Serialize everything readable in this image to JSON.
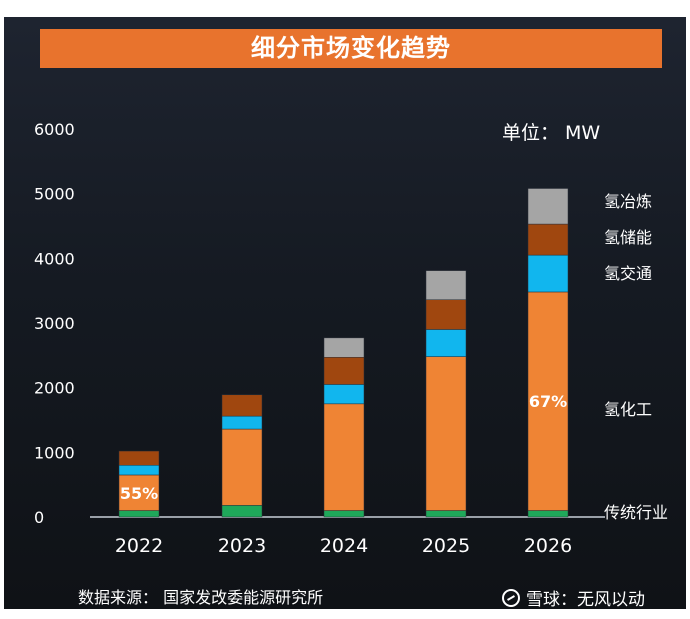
{
  "banner": {
    "title": "细分市场变化趋势"
  },
  "unit_label": "单位： MW",
  "source": "数据来源：   国家发改委能源研究所",
  "watermark": {
    "text": "雪球：无风以动",
    "icon": "snowball-logo-icon"
  },
  "colors": {
    "traditional": "#1fa85a",
    "chemical": "#ef8434",
    "transport": "#11b6ee",
    "storage": "#a0470f",
    "metallurgy": "#a5a5a5",
    "banner": "#e8732d"
  },
  "chart_data": {
    "type": "bar",
    "stacked": true,
    "categories": [
      "2022",
      "2023",
      "2024",
      "2025",
      "2026"
    ],
    "ylim": [
      0,
      6000
    ],
    "yticks": [
      0,
      1000,
      2000,
      3000,
      4000,
      5000,
      6000
    ],
    "series": [
      {
        "name": "传统行业",
        "key": "traditional",
        "values": [
          100,
          180,
          100,
          100,
          100
        ]
      },
      {
        "name": "氢化工",
        "key": "chemical",
        "values": [
          550,
          1180,
          1650,
          2380,
          3380
        ]
      },
      {
        "name": "氢交通",
        "key": "transport",
        "values": [
          150,
          200,
          300,
          420,
          570
        ]
      },
      {
        "name": "氢储能",
        "key": "storage",
        "values": [
          220,
          330,
          420,
          460,
          480
        ]
      },
      {
        "name": "氢冶炼",
        "key": "metallurgy",
        "values": [
          0,
          0,
          300,
          450,
          550
        ]
      }
    ],
    "annotations": [
      {
        "category": "2022",
        "text": "55%"
      },
      {
        "category": "2026",
        "text": "67%"
      }
    ],
    "legend_placement": "right, aligned to segments"
  }
}
